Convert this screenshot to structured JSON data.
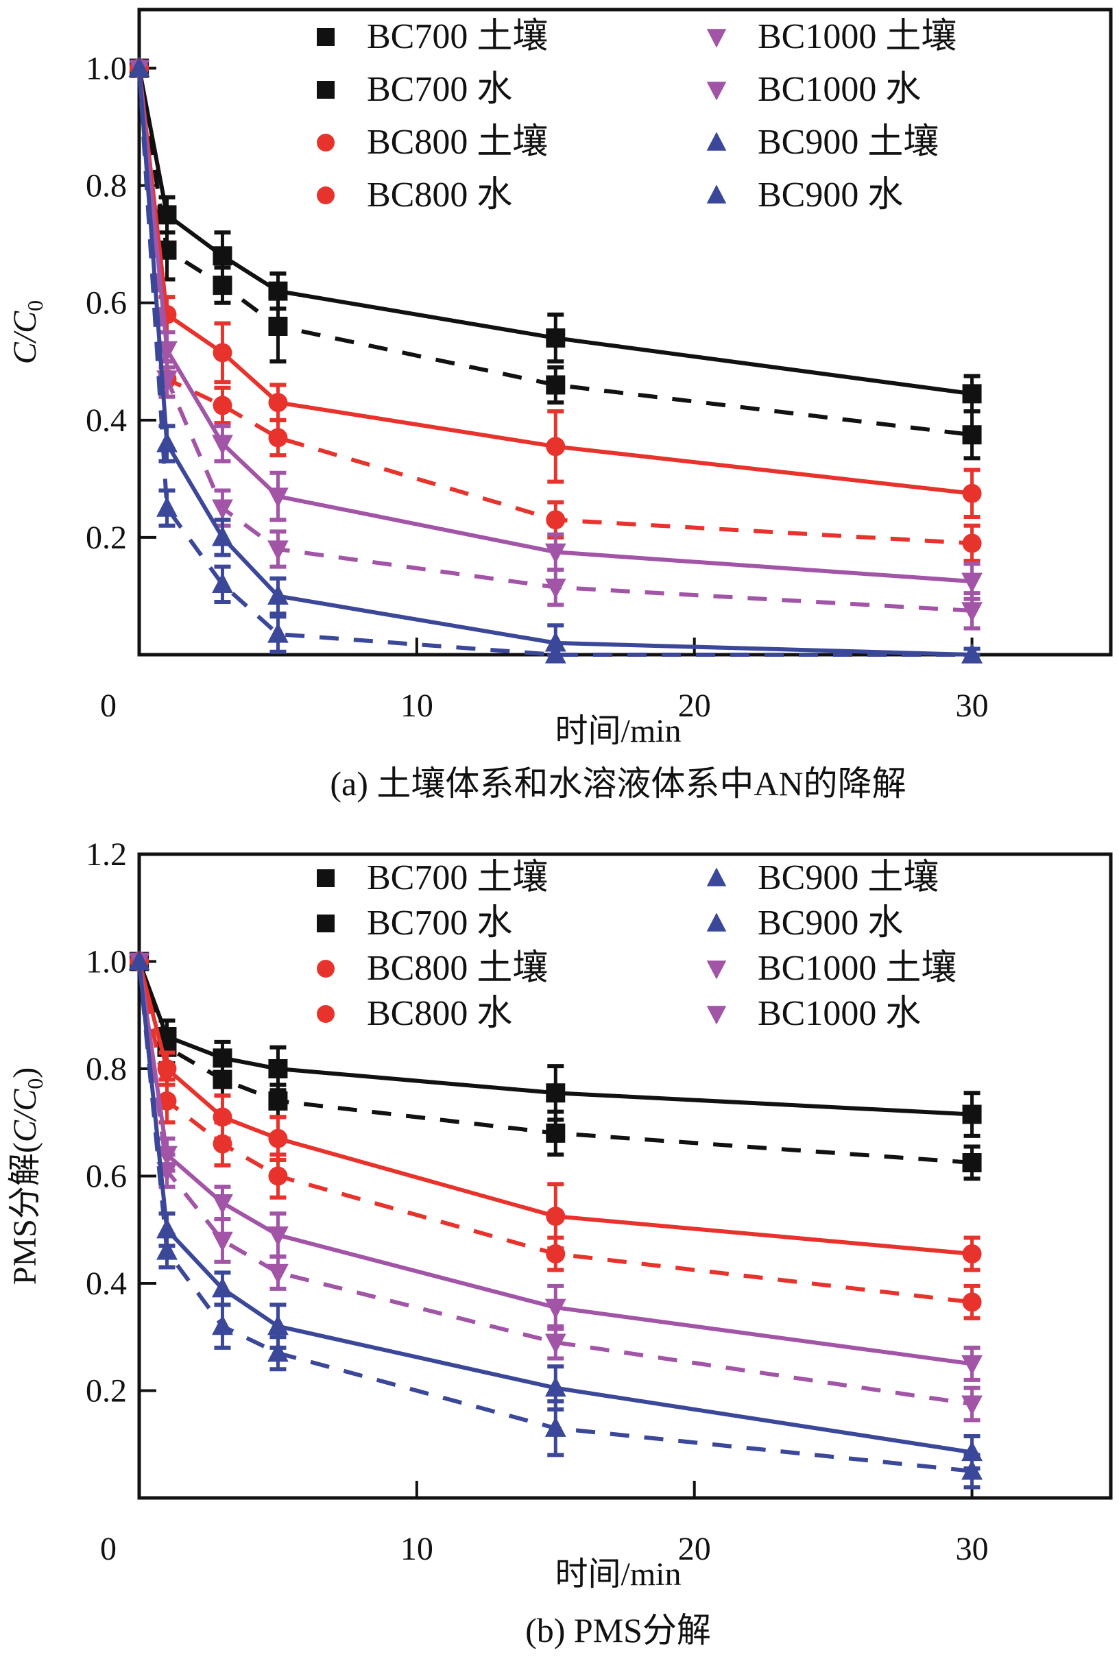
{
  "chart_data": [
    {
      "id": "a",
      "type": "line",
      "caption": "(a) 土壤体系和水溶液体系中AN的降解",
      "xlabel": "时间/min",
      "ylabel_main": "C/C",
      "ylabel_sub": "0",
      "ylabel_prefix": "",
      "ylabel_suffix": "",
      "xlim": [
        0,
        35
      ],
      "ylim": [
        0,
        1.1
      ],
      "x_ticks": [
        0,
        10,
        20,
        30
      ],
      "x_tick_labels": [
        "0",
        "10",
        "20",
        "30"
      ],
      "y_ticks": [
        0.2,
        0.4,
        0.6,
        0.8,
        1.0
      ],
      "y_tick_labels": [
        "0.2",
        "0.4",
        "0.6",
        "0.8",
        "1.0"
      ],
      "grid": false,
      "legend_placement": "top-right",
      "x": [
        0,
        1,
        3,
        5,
        15,
        30
      ],
      "series": [
        {
          "name": "BC700 土壤",
          "color": "#111111",
          "marker": "square",
          "dash": false,
          "values": [
            1.0,
            0.75,
            0.68,
            0.62,
            0.54,
            0.445
          ],
          "err": [
            0.0,
            0.03,
            0.04,
            0.03,
            0.04,
            0.03
          ]
        },
        {
          "name": "BC700 水",
          "color": "#111111",
          "marker": "square",
          "dash": true,
          "values": [
            1.0,
            0.69,
            0.63,
            0.56,
            0.46,
            0.375
          ],
          "err": [
            0.0,
            0.05,
            0.03,
            0.06,
            0.03,
            0.04
          ]
        },
        {
          "name": "BC800 土壤",
          "color": "#e8332d",
          "marker": "circle",
          "dash": false,
          "values": [
            1.0,
            0.58,
            0.515,
            0.43,
            0.355,
            0.275
          ],
          "err": [
            0.0,
            0.03,
            0.05,
            0.03,
            0.06,
            0.04
          ]
        },
        {
          "name": "BC800 水",
          "color": "#e8332d",
          "marker": "circle",
          "dash": true,
          "values": [
            1.0,
            0.47,
            0.425,
            0.37,
            0.23,
            0.19
          ],
          "err": [
            0.0,
            0.03,
            0.03,
            0.03,
            0.03,
            0.03
          ]
        },
        {
          "name": "BC1000 土壤",
          "color": "#a255a6",
          "marker": "triangle-down",
          "dash": false,
          "values": [
            1.0,
            0.52,
            0.36,
            0.27,
            0.175,
            0.125
          ],
          "err": [
            0.0,
            0.03,
            0.03,
            0.04,
            0.03,
            0.03
          ]
        },
        {
          "name": "BC1000 水",
          "color": "#a255a6",
          "marker": "triangle-down",
          "dash": true,
          "values": [
            1.0,
            0.47,
            0.25,
            0.18,
            0.115,
            0.075
          ],
          "err": [
            0.0,
            0.03,
            0.03,
            0.03,
            0.03,
            0.03
          ]
        },
        {
          "name": "BC900 土壤",
          "color": "#3b4799",
          "marker": "triangle-up",
          "dash": false,
          "values": [
            1.0,
            0.36,
            0.2,
            0.1,
            0.02,
            0.0
          ],
          "err": [
            0.0,
            0.03,
            0.03,
            0.03,
            0.03,
            0.01
          ]
        },
        {
          "name": "BC900 水",
          "color": "#3b4799",
          "marker": "triangle-up",
          "dash": true,
          "values": [
            1.0,
            0.25,
            0.12,
            0.035,
            0.0,
            0.0
          ],
          "err": [
            0.0,
            0.03,
            0.03,
            0.03,
            0.01,
            0.01
          ]
        }
      ],
      "legend": [
        {
          "label": "BC700 土壤",
          "series": 0,
          "col": 0,
          "row": 0
        },
        {
          "label": "BC700 水",
          "series": 1,
          "col": 0,
          "row": 1
        },
        {
          "label": "BC800 土壤",
          "series": 2,
          "col": 0,
          "row": 2
        },
        {
          "label": "BC800 水",
          "series": 3,
          "col": 0,
          "row": 3
        },
        {
          "label": "BC1000 土壤",
          "series": 4,
          "col": 1,
          "row": 0
        },
        {
          "label": "BC1000 水",
          "series": 5,
          "col": 1,
          "row": 1
        },
        {
          "label": "BC900 土壤",
          "series": 6,
          "col": 1,
          "row": 2
        },
        {
          "label": "BC900 水",
          "series": 7,
          "col": 1,
          "row": 3
        }
      ]
    },
    {
      "id": "b",
      "type": "line",
      "caption": "(b) PMS分解",
      "xlabel": "时间/min",
      "ylabel_main": "C/C",
      "ylabel_sub": "0",
      "ylabel_prefix": "PMS分解(",
      "ylabel_suffix": ")",
      "xlim": [
        0,
        35
      ],
      "ylim": [
        0,
        1.2
      ],
      "x_ticks": [
        0,
        10,
        20,
        30
      ],
      "x_tick_labels": [
        "0",
        "10",
        "20",
        "30"
      ],
      "y_ticks": [
        0.2,
        0.4,
        0.6,
        0.8,
        1.0,
        1.2
      ],
      "y_tick_labels": [
        "0.2",
        "0.4",
        "0.6",
        "0.8",
        "1.0",
        "1.2"
      ],
      "grid": false,
      "legend_placement": "top-right",
      "x": [
        0,
        1,
        3,
        5,
        15,
        30
      ],
      "series": [
        {
          "name": "BC700 土壤",
          "color": "#111111",
          "marker": "square",
          "dash": false,
          "values": [
            1.0,
            0.86,
            0.82,
            0.8,
            0.755,
            0.715
          ],
          "err": [
            0.0,
            0.03,
            0.03,
            0.04,
            0.05,
            0.04
          ]
        },
        {
          "name": "BC700 水",
          "color": "#111111",
          "marker": "square",
          "dash": true,
          "values": [
            1.0,
            0.84,
            0.78,
            0.74,
            0.68,
            0.625
          ],
          "err": [
            0.0,
            0.03,
            0.03,
            0.03,
            0.04,
            0.03
          ]
        },
        {
          "name": "BC800 土壤",
          "color": "#e8332d",
          "marker": "circle",
          "dash": false,
          "values": [
            1.0,
            0.8,
            0.71,
            0.67,
            0.525,
            0.455
          ],
          "err": [
            0.0,
            0.03,
            0.04,
            0.04,
            0.06,
            0.03
          ]
        },
        {
          "name": "BC800 水",
          "color": "#e8332d",
          "marker": "circle",
          "dash": true,
          "values": [
            1.0,
            0.74,
            0.66,
            0.6,
            0.455,
            0.365
          ],
          "err": [
            0.0,
            0.04,
            0.04,
            0.04,
            0.03,
            0.03
          ]
        },
        {
          "name": "BC1000 土壤",
          "color": "#a255a6",
          "marker": "triangle-down",
          "dash": false,
          "values": [
            1.0,
            0.64,
            0.55,
            0.49,
            0.355,
            0.25
          ],
          "err": [
            0.0,
            0.03,
            0.03,
            0.04,
            0.04,
            0.03
          ]
        },
        {
          "name": "BC1000 水",
          "color": "#a255a6",
          "marker": "triangle-down",
          "dash": true,
          "values": [
            1.0,
            0.61,
            0.48,
            0.42,
            0.29,
            0.175
          ],
          "err": [
            0.0,
            0.03,
            0.04,
            0.03,
            0.03,
            0.03
          ]
        },
        {
          "name": "BC900 土壤",
          "color": "#3b4799",
          "marker": "triangle-up",
          "dash": false,
          "values": [
            1.0,
            0.5,
            0.39,
            0.32,
            0.205,
            0.085
          ],
          "err": [
            0.0,
            0.03,
            0.03,
            0.04,
            0.04,
            0.03
          ]
        },
        {
          "name": "BC900 水",
          "color": "#3b4799",
          "marker": "triangle-up",
          "dash": true,
          "values": [
            1.0,
            0.46,
            0.32,
            0.27,
            0.13,
            0.05
          ],
          "err": [
            0.0,
            0.03,
            0.04,
            0.03,
            0.05,
            0.03
          ]
        }
      ],
      "legend": [
        {
          "label": "BC700 土壤",
          "series": 0,
          "col": 0,
          "row": 0
        },
        {
          "label": "BC700 水",
          "series": 1,
          "col": 0,
          "row": 1
        },
        {
          "label": "BC800 土壤",
          "series": 2,
          "col": 0,
          "row": 2
        },
        {
          "label": "BC800 水",
          "series": 3,
          "col": 0,
          "row": 3
        },
        {
          "label": "BC900 土壤",
          "series": 6,
          "col": 1,
          "row": 0
        },
        {
          "label": "BC900 水",
          "series": 7,
          "col": 1,
          "row": 1
        },
        {
          "label": "BC1000 土壤",
          "series": 4,
          "col": 1,
          "row": 2
        },
        {
          "label": "BC1000 水",
          "series": 5,
          "col": 1,
          "row": 3
        }
      ]
    }
  ]
}
